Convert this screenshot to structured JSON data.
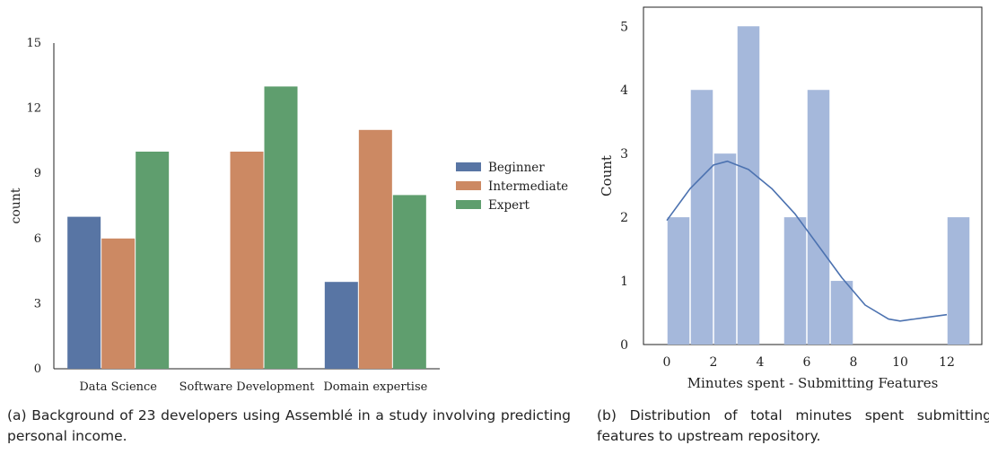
{
  "chart_data": [
    {
      "type": "bar",
      "title": "",
      "xlabel": "",
      "ylabel": "count",
      "categories": [
        "Data Science",
        "Software Development",
        "Domain expertise"
      ],
      "ylim": [
        0,
        15
      ],
      "yticks": [
        "0",
        "3",
        "6",
        "9",
        "12",
        "15"
      ],
      "series": [
        {
          "name": "Beginner",
          "values": [
            7,
            0,
            4
          ],
          "color": "#5875a4"
        },
        {
          "name": "Intermediate",
          "values": [
            6,
            10,
            11
          ],
          "color": "#cc8963"
        },
        {
          "name": "Expert",
          "values": [
            10,
            13,
            8
          ],
          "color": "#5f9e6e"
        }
      ],
      "legend": "center-right",
      "grid": false
    },
    {
      "type": "bar",
      "title": "",
      "xlabel": "Minutes spent - Submitting Features",
      "ylabel": "Count",
      "bins": [
        {
          "start": 0,
          "end": 1,
          "count": 2
        },
        {
          "start": 1,
          "end": 2,
          "count": 4
        },
        {
          "start": 2,
          "end": 3,
          "count": 3
        },
        {
          "start": 3,
          "end": 4,
          "count": 5
        },
        {
          "start": 4,
          "end": 5,
          "count": 0
        },
        {
          "start": 5,
          "end": 6,
          "count": 2
        },
        {
          "start": 6,
          "end": 7,
          "count": 4
        },
        {
          "start": 7,
          "end": 8,
          "count": 1
        },
        {
          "start": 12,
          "end": 13,
          "count": 2
        }
      ],
      "xticks": [
        "0",
        "2",
        "4",
        "6",
        "8",
        "10",
        "12"
      ],
      "yticks": [
        "0",
        "1",
        "2",
        "3",
        "4",
        "5"
      ],
      "xlim": [
        -1,
        13.5
      ],
      "ylim": [
        0,
        5.3
      ],
      "bar_color": "#a5b8db",
      "line_color": "#4c72b0",
      "kde": [
        [
          0,
          1.95
        ],
        [
          1,
          2.45
        ],
        [
          2,
          2.82
        ],
        [
          2.6,
          2.88
        ],
        [
          3.5,
          2.75
        ],
        [
          4.5,
          2.45
        ],
        [
          5.5,
          2.05
        ],
        [
          6.5,
          1.55
        ],
        [
          7.5,
          1.05
        ],
        [
          8.5,
          0.62
        ],
        [
          9.5,
          0.4
        ],
        [
          10,
          0.37
        ],
        [
          11,
          0.42
        ],
        [
          12,
          0.47
        ]
      ],
      "grid": false
    }
  ],
  "captions": {
    "a": "(a) Background of 23 developers using Assemblé in a study involving predicting personal income.",
    "b": "(b) Distribution of total minutes spent submitting features to upstream repository."
  }
}
